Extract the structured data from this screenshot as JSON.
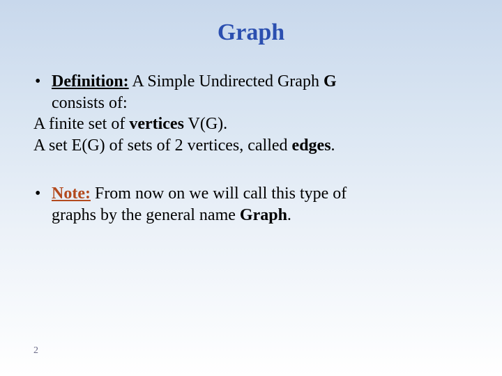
{
  "title": {
    "text": "Graph",
    "color": "#2b4fb0",
    "fontsize": 34
  },
  "body": {
    "fontsize": 24,
    "text_color": "#000000",
    "note_label_color": "#b34a1e",
    "bullet_char": "•"
  },
  "block1": {
    "defn_label": "Definition:",
    "defn_rest_1": " A Simple Undirected Graph ",
    "defn_G": "G",
    "line2": "consists of:",
    "line3_a": "A finite set of ",
    "line3_b": "vertices",
    "line3_c": " V(G).",
    "line4_a": "A set E(G) of sets of 2 vertices, called ",
    "line4_b": "edges",
    "line4_c": "."
  },
  "block2": {
    "note_label": "Note:",
    "note_rest_1": " From now on we will call this type of",
    "line2_a": "graphs by the general name ",
    "line2_b": "Graph",
    "line2_c": "."
  },
  "page_number": {
    "value": "2",
    "fontsize": 14,
    "color": "#6a6a88"
  },
  "layout": {
    "background_gradient_top": "#c8d8ec",
    "background_gradient_bottom": "#ffffff"
  }
}
